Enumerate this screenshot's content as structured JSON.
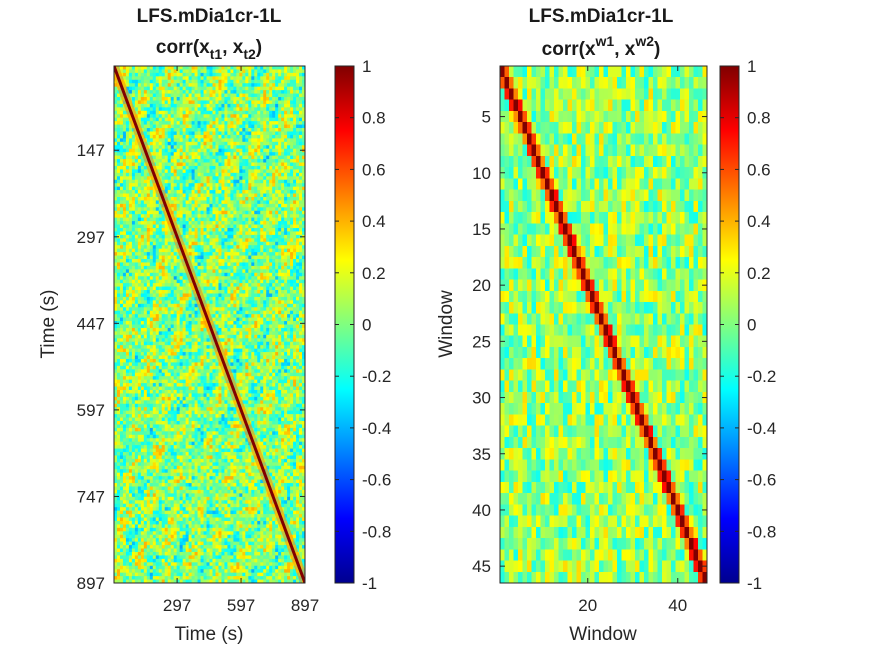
{
  "chart_data": [
    {
      "type": "heatmap",
      "title": "LFS.mDia1cr-1L",
      "subtitle": {
        "prefix": "corr(x",
        "sub1": "t1",
        "mid": ", x",
        "sub2": "t2",
        "suffix": ")"
      },
      "xlabel": "Time (s)",
      "ylabel": "Time (s)",
      "xlim": [
        1,
        897
      ],
      "ylim": [
        1,
        897
      ],
      "xticks": [
        297,
        597,
        897
      ],
      "yticks": [
        147,
        297,
        447,
        597,
        747,
        897
      ],
      "colormap": "jet",
      "clim": [
        -1,
        1
      ],
      "diagonal_value": 1,
      "off_diagonal_range": [
        -0.6,
        0.4
      ],
      "colorbar_ticks": [
        "1",
        "0.8",
        "0.6",
        "0.4",
        "0.2",
        "0",
        "-0.2",
        "-0.4",
        "-0.6",
        "-0.8",
        "-1"
      ]
    },
    {
      "type": "heatmap",
      "title": "LFS.mDia1cr-1L",
      "subtitle": {
        "prefix": "corr(x",
        "sup1": "w1",
        "mid": ", x",
        "sup2": "w2",
        "suffix": ")"
      },
      "xlabel": "Window",
      "ylabel": "Window",
      "xlim": [
        1,
        46
      ],
      "ylim": [
        1,
        46
      ],
      "xticks": [
        20,
        40
      ],
      "yticks": [
        5,
        10,
        15,
        20,
        25,
        30,
        35,
        40,
        45
      ],
      "colormap": "jet",
      "clim": [
        -1,
        1
      ],
      "diagonal_value": 1,
      "off_diagonal_range": [
        -0.4,
        0.4
      ],
      "colorbar_ticks": [
        "1",
        "0.8",
        "0.6",
        "0.4",
        "0.2",
        "0",
        "-0.2",
        "-0.4",
        "-0.6",
        "-0.8",
        "-1"
      ]
    }
  ]
}
